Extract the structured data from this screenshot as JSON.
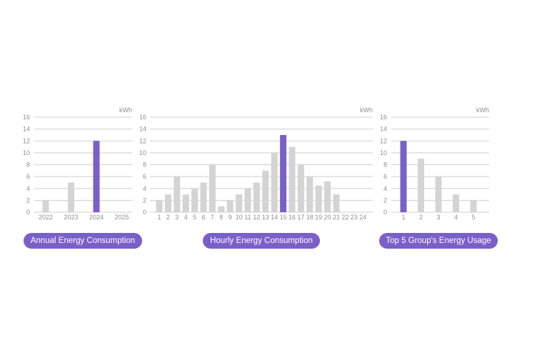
{
  "colors": {
    "bar": "#d4d4d4",
    "highlight": "#7b5fc9",
    "grid": "#cfcfcf",
    "tick": "#8f8f8f"
  },
  "chart_data": [
    {
      "type": "bar",
      "label": "Annual Energy Consumption",
      "unit": "kWh",
      "categories": [
        "2022",
        "2023",
        "2024",
        "2025"
      ],
      "values": [
        2,
        5,
        12,
        0
      ],
      "highlight": "2024",
      "ylim": [
        0,
        16
      ],
      "yticks": [
        0,
        2,
        4,
        6,
        8,
        10,
        12,
        14,
        16
      ],
      "grid": true
    },
    {
      "type": "bar",
      "label": "Hourly Energy Consumption",
      "unit": "kWh",
      "categories": [
        "1",
        "2",
        "3",
        "4",
        "5",
        "6",
        "7",
        "8",
        "9",
        "10",
        "11",
        "12",
        "13",
        "14",
        "15",
        "16",
        "17",
        "18",
        "19",
        "20",
        "21",
        "22",
        "23",
        "24"
      ],
      "values": [
        2,
        3,
        6,
        3,
        4,
        5,
        8,
        1,
        2,
        3,
        4,
        5,
        7,
        10,
        13,
        11,
        8,
        6,
        4.5,
        5.2,
        3,
        0,
        0,
        0
      ],
      "highlight": "15",
      "ylim": [
        0,
        16
      ],
      "yticks": [
        0,
        2,
        4,
        6,
        8,
        10,
        12,
        14,
        16
      ],
      "grid": true
    },
    {
      "type": "bar",
      "label": "Top 5 Group's Energy Usage",
      "unit": "kWh",
      "categories": [
        "1",
        "2",
        "3",
        "4",
        "5"
      ],
      "values": [
        12,
        9,
        6,
        3,
        2
      ],
      "highlight": "1",
      "ylim": [
        0,
        16
      ],
      "yticks": [
        0,
        2,
        4,
        6,
        8,
        10,
        12,
        14,
        16
      ],
      "grid": true
    }
  ]
}
